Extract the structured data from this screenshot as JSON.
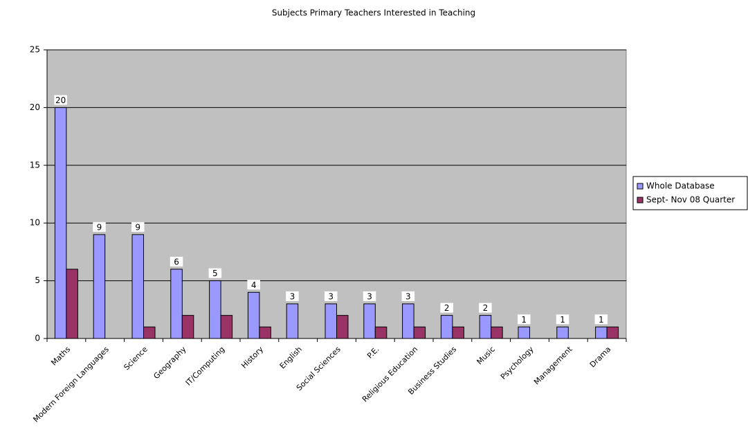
{
  "chart_data": {
    "type": "bar",
    "title": "Subjects Primary Teachers Interested in Teaching",
    "categories": [
      "Maths",
      "Modern Foreign Languages",
      "Science",
      "Geography",
      "IT/Computing",
      "History",
      "English",
      "Social Sciences",
      "P.E.",
      "Religious Education",
      "Business Studies",
      "Music",
      "Psychology",
      "Management",
      "Drama"
    ],
    "series": [
      {
        "name": "Whole Database",
        "color": "#9999ff",
        "show_labels": true,
        "values": [
          20,
          9,
          9,
          6,
          5,
          4,
          3,
          3,
          3,
          3,
          2,
          2,
          1,
          1,
          1
        ]
      },
      {
        "name": "Sept- Nov 08 Quarter",
        "color": "#993366",
        "show_labels": false,
        "values": [
          6,
          0,
          1,
          2,
          2,
          1,
          0,
          2,
          1,
          1,
          1,
          1,
          0,
          0,
          1
        ]
      }
    ],
    "ylim": [
      0,
      25
    ],
    "yticks": [
      0,
      5,
      10,
      15,
      20,
      25
    ],
    "grid": true,
    "legend": "right",
    "plot_background": "#c0c0c0"
  }
}
